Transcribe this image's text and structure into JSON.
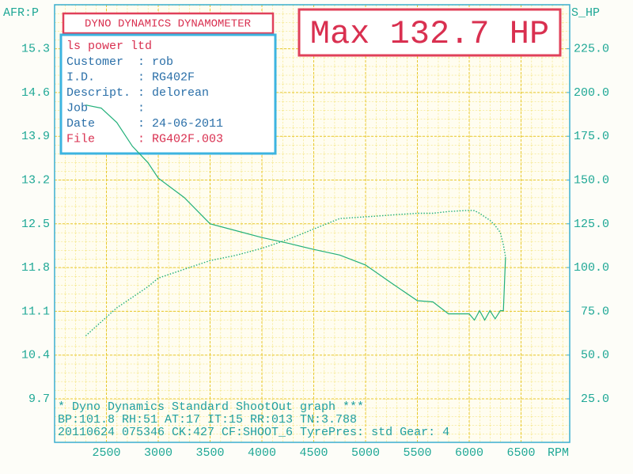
{
  "chart_data": {
    "type": "line",
    "header": "DYNO DYNAMICS DYNAMOMETER",
    "max_label": "Max 132.7 HP",
    "info": {
      "company": "ls power ltd",
      "separator": ":",
      "rows": [
        [
          "Customer",
          "rob"
        ],
        [
          "I.D.",
          "RG402F"
        ],
        [
          "Descript.",
          "delorean"
        ],
        [
          "Job",
          ""
        ],
        [
          "Date",
          "24-06-2011"
        ],
        [
          "File",
          "RG402F.003"
        ]
      ]
    },
    "y_label": "AFR:P",
    "y2_label": "S_HP",
    "x_label": "RPM",
    "footer": [
      "* Dyno Dynamics Standard ShootOut graph ***",
      "BP:101.8 RH:51 AT:17 IT:15  RR:013 TN:3.788",
      "20110624 075346 CK:427 CF:SHOOT_6  TyrePres: std     Gear: 4"
    ],
    "x": [
      2300,
      2450,
      2600,
      2750,
      2900,
      3000,
      3250,
      3500,
      3750,
      4000,
      4250,
      4500,
      4750,
      5000,
      5250,
      5500,
      5650,
      5800,
      6000,
      6050,
      6100,
      6150,
      6200,
      6250,
      6300,
      6330,
      6350
    ],
    "series": [
      {
        "name": "AFR",
        "color": "#22b07a",
        "axis": "y",
        "style": "solid",
        "values": [
          14.4,
          14.35,
          14.12,
          13.74,
          13.48,
          13.23,
          12.92,
          12.5,
          12.39,
          12.28,
          12.19,
          12.09,
          12.0,
          11.84,
          11.55,
          11.27,
          11.25,
          11.06,
          11.06,
          10.96,
          11.11,
          10.96,
          11.11,
          10.98,
          11.11,
          11.11,
          11.97
        ]
      },
      {
        "name": "HP",
        "color": "#22b07a",
        "axis": "y2",
        "style": "dotted",
        "values": [
          61,
          69,
          77,
          83,
          89,
          94,
          99,
          104,
          107,
          111,
          116,
          122,
          128,
          129,
          130,
          131,
          131,
          132,
          132.7,
          132.5,
          131,
          129,
          127,
          124,
          120,
          113,
          106
        ]
      }
    ],
    "xlim": [
      2000,
      7000
    ],
    "xticks": [
      2500,
      3000,
      3500,
      4000,
      4500,
      5000,
      5500,
      6000,
      6500
    ],
    "ylim": [
      9.0,
      16.0
    ],
    "yticks": [
      9.7,
      10.4,
      11.1,
      11.8,
      12.5,
      13.2,
      13.9,
      14.6,
      15.3
    ],
    "y2lim": [
      0,
      250
    ],
    "y2ticks": [
      {
        "value": 25,
        "label": "25.0"
      },
      {
        "value": 50,
        "label": "50.0"
      },
      {
        "value": 75,
        "label": "75.0"
      },
      {
        "value": 100,
        "label": "100.0"
      },
      {
        "value": 125,
        "label": "125.0"
      },
      {
        "value": 150,
        "label": "150.0"
      },
      {
        "value": 175,
        "label": "175.0"
      },
      {
        "value": 200,
        "label": "200.0"
      },
      {
        "value": 225,
        "label": "225.0"
      }
    ],
    "grid": true
  }
}
